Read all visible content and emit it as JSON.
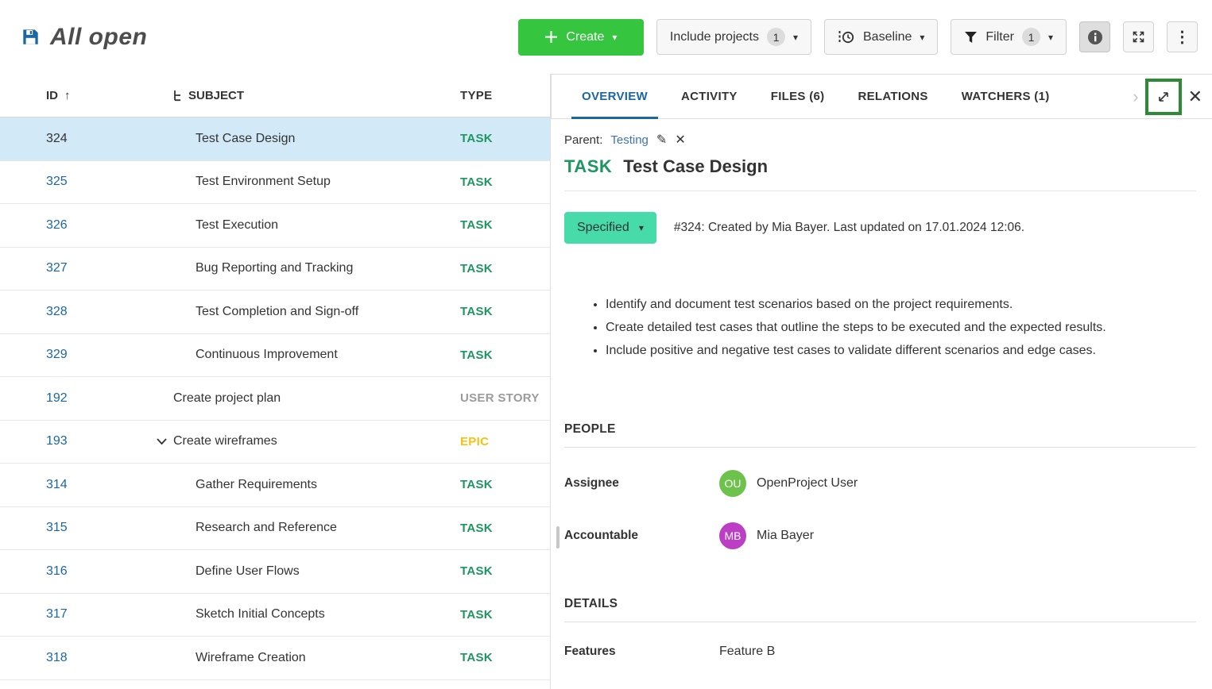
{
  "header": {
    "title": "All open",
    "create_label": "Create",
    "include_projects_label": "Include projects",
    "include_projects_count": "1",
    "baseline_label": "Baseline",
    "filter_label": "Filter",
    "filter_count": "1"
  },
  "table": {
    "columns": {
      "id": "ID",
      "subject": "SUBJECT",
      "type": "TYPE"
    },
    "rows": [
      {
        "id": "324",
        "subject": "Test Case Design",
        "type": "TASK",
        "level": 2,
        "selected": true
      },
      {
        "id": "325",
        "subject": "Test Environment Setup",
        "type": "TASK",
        "level": 2
      },
      {
        "id": "326",
        "subject": "Test Execution",
        "type": "TASK",
        "level": 2
      },
      {
        "id": "327",
        "subject": "Bug Reporting and Tracking",
        "type": "TASK",
        "level": 2
      },
      {
        "id": "328",
        "subject": "Test Completion and Sign-off",
        "type": "TASK",
        "level": 2
      },
      {
        "id": "329",
        "subject": "Continuous Improvement",
        "type": "TASK",
        "level": 2
      },
      {
        "id": "192",
        "subject": "Create project plan",
        "type": "USER STORY",
        "level": 1
      },
      {
        "id": "193",
        "subject": "Create wireframes",
        "type": "EPIC",
        "level": 1,
        "expandable": true
      },
      {
        "id": "314",
        "subject": "Gather Requirements",
        "type": "TASK",
        "level": 2
      },
      {
        "id": "315",
        "subject": "Research and Reference",
        "type": "TASK",
        "level": 2
      },
      {
        "id": "316",
        "subject": "Define User Flows",
        "type": "TASK",
        "level": 2
      },
      {
        "id": "317",
        "subject": "Sketch Initial Concepts",
        "type": "TASK",
        "level": 2
      },
      {
        "id": "318",
        "subject": "Wireframe Creation",
        "type": "TASK",
        "level": 2
      }
    ]
  },
  "panel": {
    "tabs": [
      {
        "label": "OVERVIEW",
        "active": true
      },
      {
        "label": "ACTIVITY"
      },
      {
        "label": "FILES (6)"
      },
      {
        "label": "RELATIONS"
      },
      {
        "label": "WATCHERS (1)"
      }
    ],
    "parent_label": "Parent:",
    "parent_link": "Testing",
    "type_label": "TASK",
    "title": "Test Case Design",
    "status_label": "Specified",
    "meta": "#324: Created by Mia Bayer. Last updated on 17.01.2024 12:06.",
    "description_bullets": [
      "Identify and document test scenarios based on the project requirements.",
      "Create detailed test cases that outline the steps to be executed and the expected results.",
      "Include positive and negative test cases to validate different scenarios and edge cases."
    ],
    "people": {
      "heading": "PEOPLE",
      "assignee_label": "Assignee",
      "assignee_name": "OpenProject User",
      "assignee_initials": "OU",
      "accountable_label": "Accountable",
      "accountable_name": "Mia Bayer",
      "accountable_initials": "MB"
    },
    "details": {
      "heading": "DETAILS",
      "features_label": "Features",
      "features_value": "Feature B"
    }
  },
  "colors": {
    "create_button": "#35c53f",
    "status_button": "#47dbaa",
    "link_blue": "#1a67a3",
    "selected_row": "#d2e9f7",
    "focus_outline": "#2e8b35",
    "avatar_assignee": "#6cc24a",
    "avatar_accountable": "#bb3ec4",
    "type_colors": {
      "TASK": "#1d9660",
      "USER STORY": "#9b9b9b",
      "EPIC": "#f5c211"
    }
  }
}
